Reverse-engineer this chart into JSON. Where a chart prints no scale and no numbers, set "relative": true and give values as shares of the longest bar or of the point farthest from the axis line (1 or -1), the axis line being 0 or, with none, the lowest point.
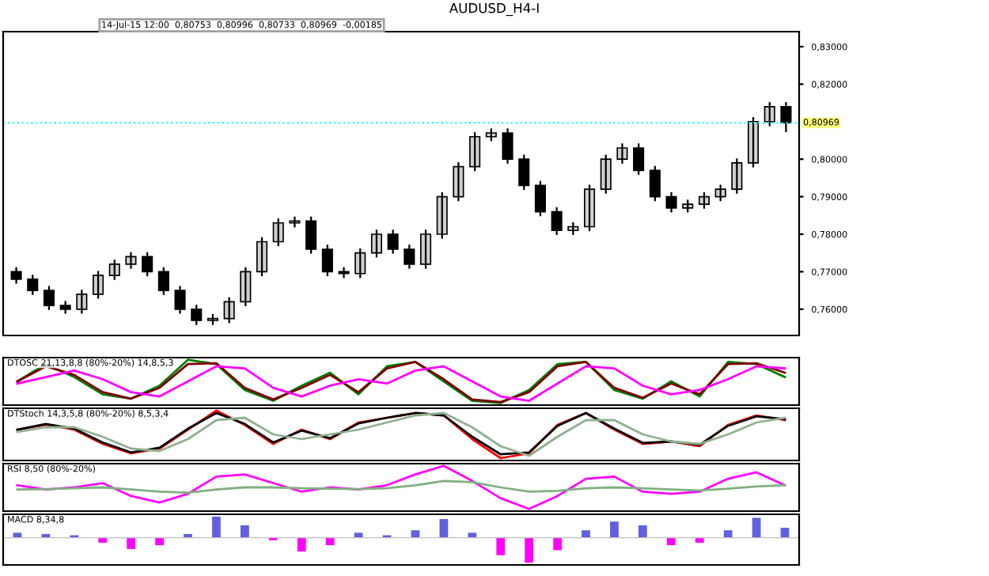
{
  "chart_data": [
    {
      "type": "candlestick",
      "title": "AUDUSD_H4-I",
      "annotations": [
        "14-Jul-15 12:00  0,80753  0,80996  0,80733  0,80969  -0,00185"
      ],
      "categories": [
        null,
        null,
        null,
        null,
        null,
        null,
        null,
        null,
        null,
        null,
        null,
        null,
        null,
        null,
        null,
        null,
        null,
        null,
        null,
        null,
        null,
        null,
        null,
        null,
        null,
        null,
        null,
        null,
        null,
        null,
        null,
        null,
        null,
        null,
        null,
        null,
        null,
        null,
        null,
        null,
        null,
        null,
        null,
        null,
        null,
        null,
        null,
        null
      ],
      "ohlc": [
        [
          0.77,
          0.7712,
          0.7668,
          0.768
        ],
        [
          0.768,
          0.7692,
          0.7638,
          0.765
        ],
        [
          0.765,
          0.7662,
          0.7598,
          0.761
        ],
        [
          0.761,
          0.7622,
          0.7588,
          0.76
        ],
        [
          0.76,
          0.7652,
          0.7588,
          0.764
        ],
        [
          0.764,
          0.7702,
          0.7628,
          0.769
        ],
        [
          0.769,
          0.7732,
          0.7678,
          0.772
        ],
        [
          0.772,
          0.7752,
          0.7708,
          0.774
        ],
        [
          0.774,
          0.7752,
          0.7688,
          0.77
        ],
        [
          0.77,
          0.7712,
          0.7638,
          0.765
        ],
        [
          0.765,
          0.7662,
          0.7588,
          0.76
        ],
        [
          0.76,
          0.7612,
          0.7558,
          0.757
        ],
        [
          0.757,
          0.7587,
          0.7558,
          0.7575
        ],
        [
          0.7575,
          0.7632,
          0.7563,
          0.762
        ],
        [
          0.762,
          0.7712,
          0.7608,
          0.77
        ],
        [
          0.77,
          0.7792,
          0.7688,
          0.778
        ],
        [
          0.778,
          0.7842,
          0.7768,
          0.783
        ],
        [
          0.783,
          0.7847,
          0.7818,
          0.7835
        ],
        [
          0.7835,
          0.7847,
          0.7748,
          0.776
        ],
        [
          0.776,
          0.7772,
          0.7688,
          0.77
        ],
        [
          0.77,
          0.7712,
          0.7683,
          0.7695
        ],
        [
          0.7695,
          0.7762,
          0.7683,
          0.775
        ],
        [
          0.775,
          0.7812,
          0.7738,
          0.78
        ],
        [
          0.78,
          0.7812,
          0.7748,
          0.776
        ],
        [
          0.776,
          0.7772,
          0.7708,
          0.772
        ],
        [
          0.772,
          0.7812,
          0.7708,
          0.78
        ],
        [
          0.78,
          0.7912,
          0.7788,
          0.79
        ],
        [
          0.79,
          0.7992,
          0.7888,
          0.798
        ],
        [
          0.798,
          0.8072,
          0.7968,
          0.806
        ],
        [
          0.806,
          0.8082,
          0.8048,
          0.807
        ],
        [
          0.807,
          0.8082,
          0.7988,
          0.8
        ],
        [
          0.8,
          0.8012,
          0.7918,
          0.793
        ],
        [
          0.793,
          0.7942,
          0.7848,
          0.786
        ],
        [
          0.786,
          0.7872,
          0.7798,
          0.781
        ],
        [
          0.781,
          0.7832,
          0.7798,
          0.782
        ],
        [
          0.782,
          0.7932,
          0.7808,
          0.792
        ],
        [
          0.792,
          0.8012,
          0.7908,
          0.8
        ],
        [
          0.8,
          0.8042,
          0.7988,
          0.803
        ],
        [
          0.803,
          0.8042,
          0.7958,
          0.797
        ],
        [
          0.797,
          0.7982,
          0.7888,
          0.79
        ],
        [
          0.79,
          0.7912,
          0.7858,
          0.787
        ],
        [
          0.787,
          0.7892,
          0.7858,
          0.788
        ],
        [
          0.788,
          0.7912,
          0.7868,
          0.79
        ],
        [
          0.79,
          0.7932,
          0.7888,
          0.792
        ],
        [
          0.792,
          0.8002,
          0.7908,
          0.799
        ],
        [
          0.799,
          0.8112,
          0.7978,
          0.81
        ],
        [
          0.81,
          0.8152,
          0.8088,
          0.814
        ],
        [
          0.814,
          0.8152,
          0.8072,
          0.8097
        ]
      ],
      "ylim": [
        0.753,
        0.834
      ],
      "yticks": [
        {
          "value": 0.76,
          "label": "0,76000"
        },
        {
          "value": 0.77,
          "label": "0,77000"
        },
        {
          "value": 0.78,
          "label": "0,78000"
        },
        {
          "value": 0.79,
          "label": "0,79000"
        },
        {
          "value": 0.8,
          "label": "0,80000"
        },
        {
          "value": 0.82,
          "label": "0,82000"
        },
        {
          "value": 0.83,
          "label": "0,83000"
        }
      ],
      "ref_lines": [
        {
          "axis": "y",
          "value": 0.80969,
          "label": "0,80969",
          "color": "#00ffff",
          "line_style": "dotted"
        }
      ],
      "tick_labels": "y"
    },
    {
      "type": "line",
      "relative": true,
      "tick_labels": false,
      "annotations": [
        "DTOSC 21,13,8,8 (80%-20%) 14,8,5,3"
      ],
      "categories": [
        null,
        null,
        null,
        null,
        null,
        null,
        null,
        null,
        null,
        null,
        null,
        null,
        null,
        null,
        null,
        null,
        null,
        null,
        null,
        null,
        null,
        null,
        null,
        null,
        null,
        null,
        null,
        null
      ],
      "series": [
        {
          "color": "#008000",
          "values": [
            0.5,
            0.9,
            0.6,
            0.2,
            0.1,
            0.4,
            1.0,
            0.9,
            0.3,
            0.05,
            0.4,
            0.7,
            0.2,
            0.85,
            0.95,
            0.5,
            0.05,
            0.0,
            0.3,
            0.9,
            0.95,
            0.3,
            0.1,
            0.5,
            0.15,
            0.95,
            0.9,
            0.6
          ]
        },
        {
          "color": "#800000",
          "values": [
            0.5,
            0.85,
            0.65,
            0.25,
            0.1,
            0.35,
            0.9,
            0.92,
            0.35,
            0.08,
            0.35,
            0.65,
            0.25,
            0.8,
            0.95,
            0.55,
            0.08,
            0.02,
            0.25,
            0.85,
            0.95,
            0.35,
            0.12,
            0.45,
            0.2,
            0.9,
            0.92,
            0.7
          ]
        },
        {
          "color": "#ff00ff",
          "values": [
            0.45,
            0.6,
            0.75,
            0.55,
            0.25,
            0.15,
            0.5,
            0.85,
            0.8,
            0.35,
            0.15,
            0.4,
            0.55,
            0.45,
            0.75,
            0.85,
            0.5,
            0.15,
            0.05,
            0.45,
            0.85,
            0.8,
            0.4,
            0.2,
            0.3,
            0.55,
            0.85,
            0.8
          ]
        }
      ]
    },
    {
      "type": "line",
      "relative": true,
      "tick_labels": false,
      "annotations": [
        "DTStoch 14,3,5,8 (80%-20%) 8,5,3,4"
      ],
      "categories": [
        null,
        null,
        null,
        null,
        null,
        null,
        null,
        null,
        null,
        null,
        null,
        null,
        null,
        null,
        null,
        null,
        null,
        null,
        null,
        null,
        null,
        null,
        null,
        null,
        null,
        null,
        null,
        null
      ],
      "series": [
        {
          "color": "#ff0000",
          "values": [
            0.6,
            0.7,
            0.6,
            0.3,
            0.1,
            0.2,
            0.6,
            1.0,
            0.7,
            0.3,
            0.6,
            0.4,
            0.75,
            0.85,
            0.95,
            0.9,
            0.4,
            0.0,
            0.1,
            0.7,
            0.95,
            0.6,
            0.3,
            0.35,
            0.25,
            0.7,
            0.9,
            0.8
          ]
        },
        {
          "color": "#000000",
          "values": [
            0.6,
            0.72,
            0.62,
            0.33,
            0.12,
            0.22,
            0.62,
            0.95,
            0.72,
            0.33,
            0.58,
            0.42,
            0.73,
            0.85,
            0.95,
            0.9,
            0.45,
            0.08,
            0.12,
            0.68,
            0.95,
            0.62,
            0.32,
            0.35,
            0.28,
            0.68,
            0.88,
            0.82
          ]
        },
        {
          "color": "#90b090",
          "values": [
            0.55,
            0.65,
            0.65,
            0.45,
            0.2,
            0.15,
            0.4,
            0.8,
            0.85,
            0.5,
            0.4,
            0.5,
            0.6,
            0.75,
            0.9,
            0.95,
            0.65,
            0.25,
            0.05,
            0.45,
            0.8,
            0.8,
            0.5,
            0.35,
            0.3,
            0.5,
            0.75,
            0.85
          ]
        }
      ]
    },
    {
      "type": "line",
      "relative": true,
      "tick_labels": false,
      "annotations": [
        "RSI 8,50 (80%-20%)"
      ],
      "categories": [
        null,
        null,
        null,
        null,
        null,
        null,
        null,
        null,
        null,
        null,
        null,
        null,
        null,
        null,
        null,
        null,
        null,
        null,
        null,
        null,
        null,
        null,
        null,
        null,
        null,
        null,
        null,
        null
      ],
      "series": [
        {
          "color": "#ff00ff",
          "values": [
            0.55,
            0.45,
            0.5,
            0.6,
            0.3,
            0.15,
            0.35,
            0.75,
            0.8,
            0.6,
            0.4,
            0.5,
            0.45,
            0.55,
            0.8,
            1.0,
            0.65,
            0.25,
            0.0,
            0.3,
            0.7,
            0.75,
            0.4,
            0.35,
            0.4,
            0.7,
            0.85,
            0.55
          ]
        },
        {
          "color": "#80b080",
          "values": [
            0.45,
            0.46,
            0.48,
            0.5,
            0.45,
            0.4,
            0.38,
            0.45,
            0.5,
            0.5,
            0.48,
            0.47,
            0.46,
            0.48,
            0.55,
            0.65,
            0.62,
            0.5,
            0.4,
            0.42,
            0.48,
            0.5,
            0.48,
            0.45,
            0.43,
            0.47,
            0.52,
            0.55
          ]
        }
      ]
    },
    {
      "type": "bar",
      "relative": true,
      "tick_labels": false,
      "annotations": [
        "MACD 8,34,8"
      ],
      "categories": [
        null,
        null,
        null,
        null,
        null,
        null,
        null,
        null,
        null,
        null,
        null,
        null,
        null,
        null,
        null,
        null,
        null,
        null,
        null,
        null,
        null,
        null,
        null,
        null,
        null,
        null,
        null,
        null
      ],
      "values": [
        0.2,
        0.15,
        0.1,
        -0.2,
        -0.45,
        -0.3,
        0.15,
        0.85,
        0.5,
        -0.1,
        -0.55,
        -0.3,
        0.2,
        0.1,
        0.3,
        0.75,
        0.2,
        -0.7,
        -1.0,
        -0.5,
        0.3,
        0.65,
        0.5,
        -0.3,
        -0.2,
        0.3,
        0.8,
        0.4
      ],
      "colors": [
        "#6060e0",
        "#6060e0",
        "#6060e0",
        "#ff00ff",
        "#ff00ff",
        "#ff00ff",
        "#6060e0",
        "#6060e0",
        "#6060e0",
        "#ff00ff",
        "#ff00ff",
        "#ff00ff",
        "#6060e0",
        "#6060e0",
        "#6060e0",
        "#6060e0",
        "#6060e0",
        "#ff00ff",
        "#ff00ff",
        "#ff00ff",
        "#6060e0",
        "#6060e0",
        "#6060e0",
        "#ff00ff",
        "#ff00ff",
        "#6060e0",
        "#6060e0",
        "#6060e0"
      ]
    }
  ]
}
